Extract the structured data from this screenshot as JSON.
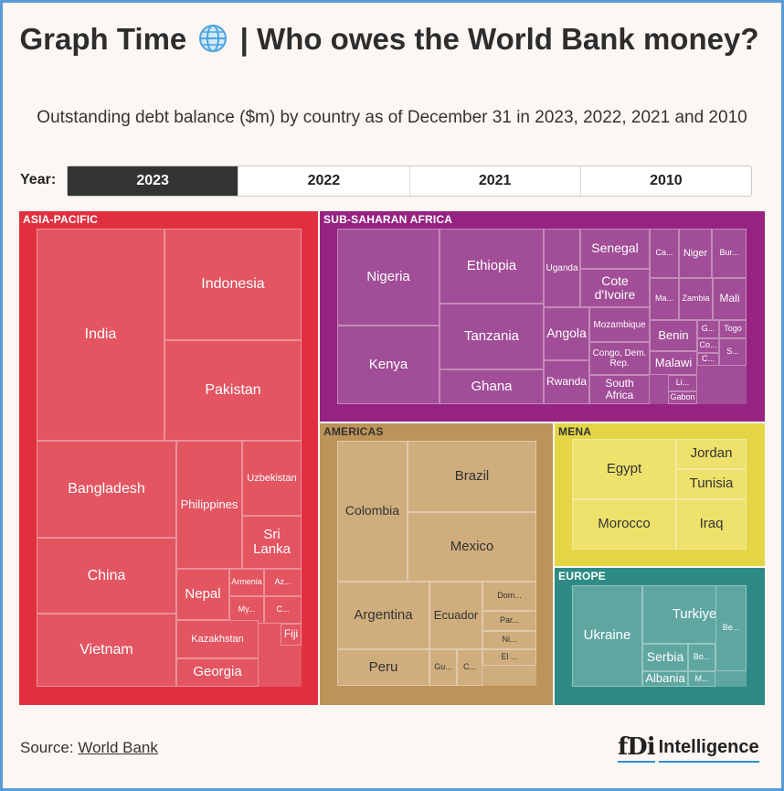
{
  "header": {
    "title_part1": "Graph Time",
    "title_part2": "| Who owes the World Bank money?",
    "globe_icon": "globe-icon",
    "subtitle": "Outstanding debt balance ($m) by country as of December 31 in 2023, 2022, 2021 and 2010"
  },
  "year_selector": {
    "label": "Year:",
    "options": [
      "2023",
      "2022",
      "2021",
      "2010"
    ],
    "selected": "2023"
  },
  "footer": {
    "source_prefix": "Source:",
    "source_link": "World Bank",
    "logo_mark": "fDi",
    "logo_text": "Intelligence"
  },
  "colors": {
    "asia_pacific": "#e0303f",
    "sub_saharan_africa": "#962281",
    "americas": "#bd935a",
    "mena": "#e3d545",
    "europe": "#2e8a84",
    "frame": "#5b9bd5"
  },
  "chart_data": {
    "type": "treemap",
    "title": "Graph Time | Who owes the World Bank money?",
    "subtitle": "Outstanding debt balance ($m) by country as of December 31 in 2023, 2022, 2021 and 2010",
    "selected_year": "2023",
    "regions": [
      {
        "name": "ASIA-PACIFIC",
        "countries": [
          "India",
          "Indonesia",
          "Pakistan",
          "Bangladesh",
          "Philippines",
          "Uzbekistan",
          "Sri Lanka",
          "China",
          "Nepal",
          "Armenia",
          "Az...",
          "My...",
          "C...",
          "Vietnam",
          "Kazakhstan",
          "Fiji",
          "Georgia"
        ]
      },
      {
        "name": "SUB-SAHARAN AFRICA",
        "countries": [
          "Nigeria",
          "Kenya",
          "Ethiopia",
          "Tanzania",
          "Ghana",
          "Uganda",
          "Senegal",
          "Cote d'Ivoire",
          "Ca...",
          "Niger",
          "Bur...",
          "Ma...",
          "Zambia",
          "Mali",
          "Angola",
          "Mozambique",
          "Congo, Dem. Rep.",
          "Benin",
          "G...",
          "Togo",
          "Co...",
          "C...",
          "S...",
          "Malawi",
          "Rwanda",
          "South Africa",
          "Li...",
          "Gabon"
        ]
      },
      {
        "name": "AMERICAS",
        "countries": [
          "Colombia",
          "Brazil",
          "Mexico",
          "Argentina",
          "Ecuador",
          "Peru",
          "Gu...",
          "C...",
          "Dom...",
          "Par...",
          "Ni...",
          "El ..."
        ]
      },
      {
        "name": "MENA",
        "countries": [
          "Egypt",
          "Jordan",
          "Tunisia",
          "Morocco",
          "Iraq"
        ]
      },
      {
        "name": "EUROPE",
        "countries": [
          "Ukraine",
          "Turkiye",
          "Serbia",
          "Bo...",
          "Be...",
          "Albania",
          "M..."
        ]
      }
    ]
  }
}
